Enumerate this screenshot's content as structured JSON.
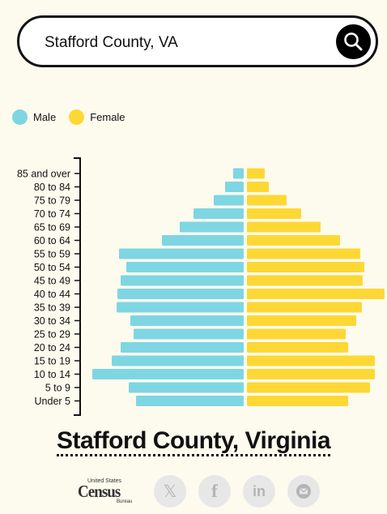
{
  "search": {
    "value": "Stafford County, VA"
  },
  "legend": [
    {
      "label": "Male",
      "color": "#7ed6e3"
    },
    {
      "label": "Female",
      "color": "#fdd835"
    }
  ],
  "chart_data": {
    "type": "bar",
    "categories": [
      "85 and over",
      "80 to 84",
      "75 to 79",
      "70 to 74",
      "65 to 69",
      "60 to 64",
      "55 to 59",
      "50 to 54",
      "45 to 49",
      "40 to 44",
      "35 to 39",
      "30 to 34",
      "25 to 29",
      "20 to 24",
      "15 to 19",
      "10 to 14",
      "5 to 9",
      "Under 5"
    ],
    "series": [
      {
        "name": "Male",
        "color": "#7ed6e3",
        "values": [
          13,
          23,
          37,
          62,
          79,
          101,
          154,
          145,
          152,
          156,
          157,
          140,
          136,
          152,
          163,
          187,
          142,
          133
        ]
      },
      {
        "name": "Female",
        "color": "#fdd835",
        "values": [
          22,
          27,
          49,
          67,
          91,
          115,
          140,
          145,
          143,
          170,
          142,
          135,
          122,
          125,
          158,
          158,
          152,
          125
        ]
      }
    ]
  },
  "title": "Stafford County, Virginia",
  "footer": {
    "logo_line1": "United States",
    "logo_line2": "Census",
    "logo_line3": "Bureau"
  }
}
